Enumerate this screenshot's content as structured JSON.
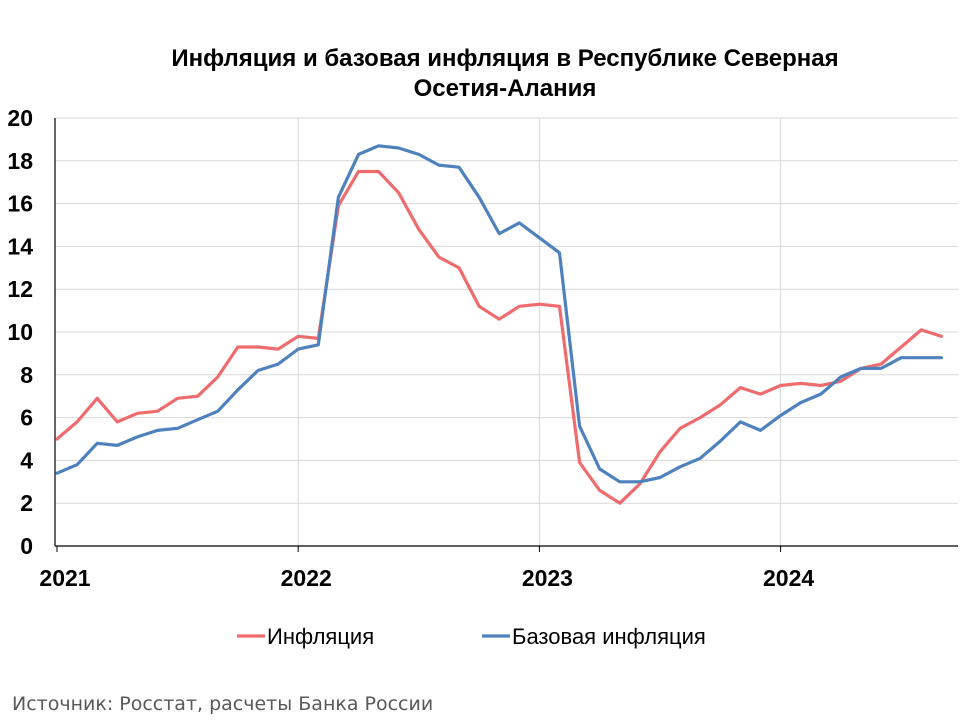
{
  "chart_data": {
    "type": "line",
    "title": [
      "Инфляция и базовая инфляция в Республике Северная",
      "Осетия-Алания"
    ],
    "xlabel": "",
    "ylabel": "",
    "ylim": [
      0,
      20
    ],
    "yticks": [
      "0",
      "2",
      "4",
      "6",
      "8",
      "10",
      "12",
      "14",
      "16",
      "18",
      "20"
    ],
    "x_start": "2021-01",
    "x_tick_labels": [
      "2021",
      "2022",
      "2023",
      "2024"
    ],
    "grid": true,
    "legend_position": "bottom",
    "series": [
      {
        "name": "Инфляция",
        "color": "#ee6b6e",
        "values": [
          5.0,
          5.8,
          6.9,
          5.8,
          6.2,
          6.3,
          6.9,
          7.0,
          7.9,
          9.3,
          9.3,
          9.2,
          9.8,
          9.7,
          15.9,
          17.5,
          17.5,
          16.5,
          14.8,
          13.5,
          13.0,
          11.2,
          10.6,
          11.2,
          11.3,
          11.2,
          3.9,
          2.6,
          2.0,
          2.9,
          4.4,
          5.5,
          6.0,
          6.6,
          7.4,
          7.1,
          7.5,
          7.6,
          7.5,
          7.7,
          8.3,
          8.5,
          9.3,
          10.1,
          9.8
        ]
      },
      {
        "name": "Базовая инфляция",
        "color": "#4f81bd",
        "values": [
          3.4,
          3.8,
          4.8,
          4.7,
          5.1,
          5.4,
          5.5,
          5.9,
          6.3,
          7.3,
          8.2,
          8.5,
          9.2,
          9.4,
          16.3,
          18.3,
          18.7,
          18.6,
          18.3,
          17.8,
          17.7,
          16.3,
          14.6,
          15.1,
          14.4,
          13.7,
          5.6,
          3.6,
          3.0,
          3.0,
          3.2,
          3.7,
          4.1,
          4.9,
          5.8,
          5.4,
          6.1,
          6.7,
          7.1,
          7.9,
          8.3,
          8.3,
          8.8,
          8.8,
          8.8
        ]
      }
    ]
  },
  "source_text": "Источник: Росстат, расчеты Банка России"
}
